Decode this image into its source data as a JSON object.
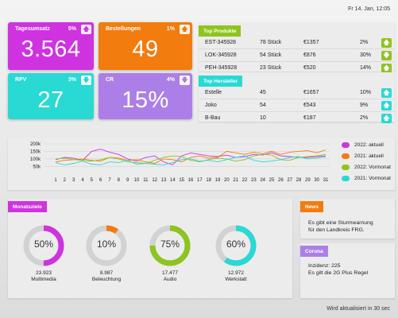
{
  "datetime": "Fr 14. Jan, 12:05",
  "footer": "Wird aktualisiert in 30 sec",
  "kpis": [
    {
      "title": "Tagesumsatz",
      "pct": "5%",
      "value": "3.564",
      "color": "#cf33e0",
      "arrow": "up"
    },
    {
      "title": "Bestellungen",
      "pct": "1%",
      "value": "49",
      "color": "#f27c0e",
      "arrow": "up"
    },
    {
      "title": "RPV",
      "pct": "3%",
      "value": "27",
      "color": "#29d9d3",
      "arrow": "down"
    },
    {
      "title": "CR",
      "pct": "4%",
      "value": "15%",
      "color": "#ac7fe8",
      "arrow": "down"
    }
  ],
  "top_products": {
    "title": "Top Produkte",
    "rows": [
      {
        "name": "EST-345928",
        "qty": "78 Stück",
        "price": "€1357",
        "pct": "2%",
        "trend": "up"
      },
      {
        "name": "LOK-345928",
        "qty": "54 Stück",
        "price": "€876",
        "pct": "30%",
        "trend": "down"
      },
      {
        "name": "PEH-345928",
        "qty": "23 Stück",
        "price": "€520",
        "pct": "14%",
        "trend": "up"
      }
    ]
  },
  "top_manufacturers": {
    "title": "Top Hersteller",
    "rows": [
      {
        "name": "Estelle",
        "qty": "45",
        "price": "€1657",
        "pct": "10%",
        "trend": "up"
      },
      {
        "name": "Joko",
        "qty": "54",
        "price": "€543",
        "pct": "9%",
        "trend": "up"
      },
      {
        "name": "B-Bau",
        "qty": "10",
        "price": "€187",
        "pct": "2%",
        "trend": "up"
      }
    ]
  },
  "chart_data": {
    "type": "line",
    "x": [
      1,
      2,
      3,
      4,
      5,
      6,
      7,
      8,
      9,
      10,
      11,
      12,
      13,
      14,
      15,
      16,
      17,
      18,
      19,
      20,
      21,
      22,
      23,
      24,
      25,
      26,
      27,
      28,
      29,
      30,
      31
    ],
    "y_ticks": [
      "200k",
      "150k",
      "100k",
      "50k"
    ],
    "ylim": [
      25,
      200
    ],
    "grid": true,
    "legend_position": "right",
    "series": [
      {
        "name": "2022: aktuell",
        "color": "#cf33e0",
        "values": [
          95,
          110,
          105,
          90,
          150,
          165,
          145,
          130,
          100,
          85,
          110,
          120,
          80,
          60,
          120,
          140,
          130,
          120,
          115,
          125,
          110,
          115,
          130,
          125,
          140,
          120,
          115,
          110,
          110,
          115,
          120
        ]
      },
      {
        "name": "2021: aktuell",
        "color": "#f27c0e",
        "values": [
          80,
          90,
          95,
          100,
          90,
          85,
          110,
          105,
          90,
          95,
          80,
          70,
          100,
          95,
          80,
          110,
          120,
          105,
          110,
          150,
          140,
          130,
          145,
          135,
          150,
          130,
          145,
          150,
          155,
          140,
          160
        ]
      },
      {
        "name": "2022: Vormonat",
        "color": "#8ec41f",
        "values": [
          100,
          105,
          95,
          90,
          85,
          95,
          110,
          100,
          80,
          75,
          70,
          90,
          110,
          120,
          115,
          90,
          80,
          95,
          105,
          100,
          85,
          95,
          120,
          130,
          125,
          95,
          90,
          110,
          115,
          120,
          130
        ]
      },
      {
        "name": "2021: Vormonat",
        "color": "#29d9d3",
        "values": [
          75,
          60,
          70,
          85,
          65,
          60,
          80,
          75,
          90,
          65,
          70,
          65,
          60,
          75,
          95,
          100,
          85,
          90,
          80,
          95,
          110,
          120,
          90,
          80,
          85,
          95,
          110,
          115,
          100,
          105,
          115
        ]
      }
    ]
  },
  "goals": {
    "title": "Monatsziele",
    "items": [
      {
        "pct": "50%",
        "value": 50,
        "abs": "23.923",
        "name": "Multimedia",
        "color": "#cf33e0"
      },
      {
        "pct": "10%",
        "value": 10,
        "abs": "8.987",
        "name": "Beleuchtung",
        "color": "#f27c0e"
      },
      {
        "pct": "75%",
        "value": 75,
        "abs": "17.477",
        "name": "Audio",
        "color": "#8ec41f"
      },
      {
        "pct": "60%",
        "value": 60,
        "abs": "12.972",
        "name": "Werkstatt",
        "color": "#29d9d3"
      }
    ]
  },
  "news": {
    "title": "News",
    "text1": "Es gibt eine Sturmwarnung",
    "text2": "für den Landkreis FRG.",
    "color": "#f27c0e"
  },
  "corona": {
    "title": "Corona",
    "text1": "Inzidenz: 225",
    "text2": "Es gilt die 2G Plus Regel",
    "color": "#ac7fe8"
  },
  "icons": {
    "arrow_up": "arrow-up-icon",
    "arrow_down": "arrow-down-icon"
  }
}
